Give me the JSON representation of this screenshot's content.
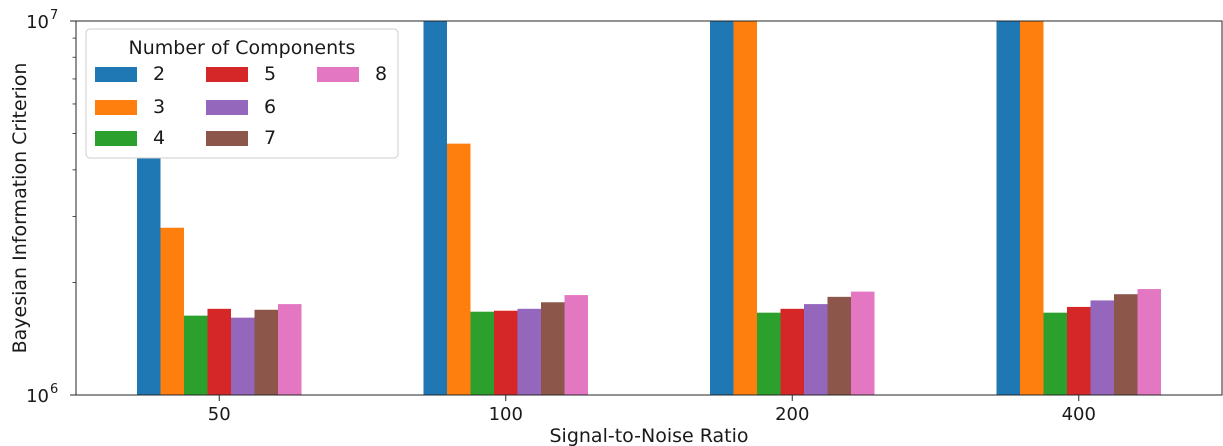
{
  "chart_data": {
    "type": "bar",
    "xlabel": "Signal-to-Noise Ratio",
    "ylabel": "Bayesian Information Criterion",
    "yscale": "log",
    "ylim": [
      1000000,
      10000000
    ],
    "yticks": [
      {
        "value": 1000000,
        "base": "10",
        "exp": "6"
      },
      {
        "value": 10000000,
        "base": "10",
        "exp": "7"
      }
    ],
    "categories": [
      "50",
      "100",
      "200",
      "400"
    ],
    "legend": {
      "title": "Number of Components",
      "position": "top-left",
      "ncol": 3
    },
    "series": [
      {
        "name": "2",
        "color": "#1f77b4",
        "values": [
          4300000,
          10000000,
          10000000,
          10000000
        ]
      },
      {
        "name": "3",
        "color": "#ff7f0e",
        "values": [
          2800000,
          4700000,
          10000000,
          10000000
        ]
      },
      {
        "name": "4",
        "color": "#2ca02c",
        "values": [
          1630000,
          1670000,
          1660000,
          1660000
        ]
      },
      {
        "name": "5",
        "color": "#d62728",
        "values": [
          1700000,
          1680000,
          1700000,
          1720000
        ]
      },
      {
        "name": "6",
        "color": "#9467bd",
        "values": [
          1610000,
          1700000,
          1750000,
          1790000
        ]
      },
      {
        "name": "7",
        "color": "#8c564b",
        "values": [
          1690000,
          1770000,
          1830000,
          1860000
        ]
      },
      {
        "name": "8",
        "color": "#e377c2",
        "values": [
          1750000,
          1850000,
          1890000,
          1920000
        ]
      }
    ]
  }
}
